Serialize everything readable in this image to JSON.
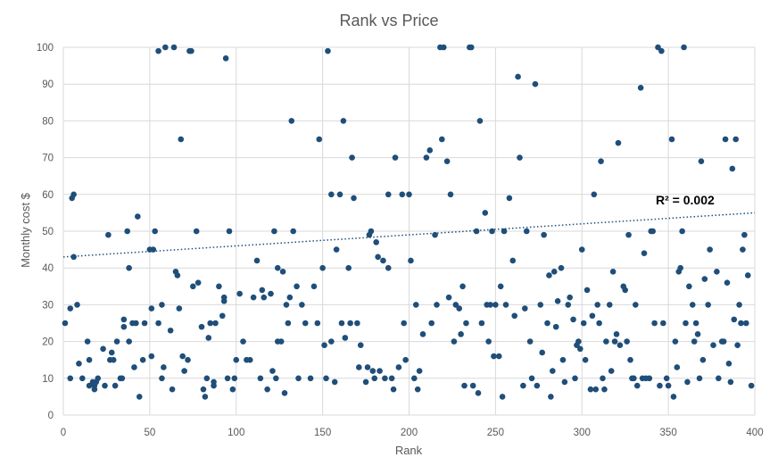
{
  "chart_data": {
    "type": "scatter",
    "title": "Rank vs Price",
    "xlabel": "Rank",
    "ylabel": "Monthly cost $",
    "xlim": [
      0,
      400
    ],
    "ylim": [
      0,
      100
    ],
    "x_ticks": [
      0,
      50,
      100,
      150,
      200,
      250,
      300,
      350,
      400
    ],
    "y_ticks": [
      0,
      10,
      20,
      30,
      40,
      50,
      60,
      70,
      80,
      90,
      100
    ],
    "grid": true,
    "legend": "none",
    "marker_color": "#1f4e79",
    "trendline": {
      "type": "linear",
      "style": "dotted",
      "color": "#1f4e79",
      "start": [
        0,
        43
      ],
      "end": [
        400,
        55
      ],
      "r_squared_label": "R² = 0.002"
    },
    "points": [
      [
        1,
        25
      ],
      [
        4,
        10
      ],
      [
        4,
        29
      ],
      [
        5,
        59
      ],
      [
        6,
        43
      ],
      [
        6,
        60
      ],
      [
        8,
        30
      ],
      [
        9,
        14
      ],
      [
        11,
        10
      ],
      [
        14,
        20
      ],
      [
        15,
        15
      ],
      [
        15,
        8
      ],
      [
        17,
        9
      ],
      [
        18,
        7
      ],
      [
        18,
        8
      ],
      [
        19,
        9
      ],
      [
        20,
        10
      ],
      [
        23,
        18
      ],
      [
        24,
        8
      ],
      [
        26,
        49
      ],
      [
        27,
        15
      ],
      [
        28,
        17
      ],
      [
        29,
        15
      ],
      [
        30,
        8
      ],
      [
        31,
        20
      ],
      [
        33,
        10
      ],
      [
        34,
        10
      ],
      [
        35,
        24
      ],
      [
        35,
        26
      ],
      [
        37,
        50
      ],
      [
        38,
        40
      ],
      [
        38,
        20
      ],
      [
        40,
        25
      ],
      [
        41,
        13
      ],
      [
        42,
        25
      ],
      [
        43,
        54
      ],
      [
        44,
        5
      ],
      [
        46,
        15
      ],
      [
        47,
        25
      ],
      [
        50,
        45
      ],
      [
        51,
        29
      ],
      [
        51,
        16
      ],
      [
        52,
        45
      ],
      [
        53,
        50
      ],
      [
        55,
        25
      ],
      [
        55,
        99
      ],
      [
        57,
        10
      ],
      [
        57,
        30
      ],
      [
        58,
        13
      ],
      [
        59,
        100
      ],
      [
        62,
        23
      ],
      [
        63,
        7
      ],
      [
        64,
        100
      ],
      [
        65,
        39
      ],
      [
        66,
        38
      ],
      [
        67,
        29
      ],
      [
        68,
        75
      ],
      [
        69,
        16
      ],
      [
        70,
        12
      ],
      [
        72,
        15
      ],
      [
        73,
        99
      ],
      [
        74,
        99
      ],
      [
        75,
        35
      ],
      [
        77,
        50
      ],
      [
        78,
        36
      ],
      [
        80,
        24
      ],
      [
        81,
        7
      ],
      [
        82,
        5
      ],
      [
        83,
        10
      ],
      [
        84,
        21
      ],
      [
        85,
        25
      ],
      [
        87,
        8
      ],
      [
        87,
        9
      ],
      [
        88,
        25
      ],
      [
        90,
        35
      ],
      [
        92,
        27
      ],
      [
        93,
        31
      ],
      [
        93,
        32
      ],
      [
        94,
        97
      ],
      [
        95,
        10
      ],
      [
        96,
        50
      ],
      [
        98,
        7
      ],
      [
        99,
        10
      ],
      [
        100,
        15
      ],
      [
        102,
        33
      ],
      [
        104,
        20
      ],
      [
        106,
        15
      ],
      [
        108,
        15
      ],
      [
        110,
        32
      ],
      [
        112,
        42
      ],
      [
        114,
        10
      ],
      [
        115,
        34
      ],
      [
        116,
        32
      ],
      [
        118,
        7
      ],
      [
        120,
        33
      ],
      [
        121,
        12
      ],
      [
        122,
        50
      ],
      [
        123,
        10
      ],
      [
        124,
        40
      ],
      [
        124,
        20
      ],
      [
        126,
        20
      ],
      [
        127,
        39
      ],
      [
        128,
        6
      ],
      [
        129,
        30
      ],
      [
        130,
        25
      ],
      [
        131,
        32
      ],
      [
        132,
        80
      ],
      [
        133,
        50
      ],
      [
        135,
        35
      ],
      [
        136,
        10
      ],
      [
        138,
        30
      ],
      [
        140,
        25
      ],
      [
        143,
        10
      ],
      [
        145,
        35
      ],
      [
        147,
        25
      ],
      [
        148,
        75
      ],
      [
        150,
        40
      ],
      [
        151,
        19
      ],
      [
        152,
        10
      ],
      [
        153,
        99
      ],
      [
        155,
        20
      ],
      [
        155,
        60
      ],
      [
        157,
        9
      ],
      [
        158,
        45
      ],
      [
        160,
        60
      ],
      [
        161,
        25
      ],
      [
        162,
        80
      ],
      [
        163,
        21
      ],
      [
        165,
        40
      ],
      [
        166,
        25
      ],
      [
        167,
        70
      ],
      [
        168,
        59
      ],
      [
        170,
        25
      ],
      [
        171,
        13
      ],
      [
        172,
        19
      ],
      [
        175,
        9
      ],
      [
        176,
        13
      ],
      [
        177,
        49
      ],
      [
        178,
        50
      ],
      [
        179,
        12
      ],
      [
        180,
        10
      ],
      [
        181,
        47
      ],
      [
        182,
        43
      ],
      [
        183,
        12
      ],
      [
        185,
        42
      ],
      [
        186,
        10
      ],
      [
        188,
        40
      ],
      [
        188,
        60
      ],
      [
        190,
        10
      ],
      [
        191,
        7
      ],
      [
        192,
        70
      ],
      [
        194,
        13
      ],
      [
        196,
        60
      ],
      [
        197,
        25
      ],
      [
        198,
        15
      ],
      [
        200,
        60
      ],
      [
        201,
        42
      ],
      [
        203,
        10
      ],
      [
        204,
        30
      ],
      [
        205,
        7
      ],
      [
        206,
        12
      ],
      [
        208,
        22
      ],
      [
        210,
        70
      ],
      [
        212,
        72
      ],
      [
        213,
        25
      ],
      [
        215,
        49
      ],
      [
        216,
        30
      ],
      [
        218,
        100
      ],
      [
        219,
        75
      ],
      [
        220,
        100
      ],
      [
        222,
        69
      ],
      [
        223,
        32
      ],
      [
        224,
        60
      ],
      [
        226,
        20
      ],
      [
        227,
        30
      ],
      [
        229,
        29
      ],
      [
        230,
        22
      ],
      [
        231,
        35
      ],
      [
        232,
        8
      ],
      [
        233,
        25
      ],
      [
        235,
        100
      ],
      [
        236,
        100
      ],
      [
        237,
        8
      ],
      [
        239,
        50
      ],
      [
        240,
        6
      ],
      [
        241,
        80
      ],
      [
        242,
        25
      ],
      [
        244,
        55
      ],
      [
        245,
        30
      ],
      [
        246,
        20
      ],
      [
        247,
        30
      ],
      [
        248,
        50
      ],
      [
        249,
        16
      ],
      [
        250,
        30
      ],
      [
        252,
        16
      ],
      [
        253,
        35
      ],
      [
        254,
        5
      ],
      [
        255,
        50
      ],
      [
        256,
        30
      ],
      [
        258,
        59
      ],
      [
        260,
        42
      ],
      [
        261,
        27
      ],
      [
        263,
        92
      ],
      [
        264,
        70
      ],
      [
        266,
        8
      ],
      [
        267,
        29
      ],
      [
        268,
        50
      ],
      [
        270,
        20
      ],
      [
        271,
        10
      ],
      [
        273,
        90
      ],
      [
        274,
        8
      ],
      [
        276,
        30
      ],
      [
        277,
        17
      ],
      [
        278,
        49
      ],
      [
        280,
        25
      ],
      [
        281,
        38
      ],
      [
        282,
        5
      ],
      [
        283,
        12
      ],
      [
        284,
        39
      ],
      [
        285,
        24
      ],
      [
        286,
        31
      ],
      [
        288,
        40
      ],
      [
        289,
        15
      ],
      [
        290,
        9
      ],
      [
        292,
        30
      ],
      [
        293,
        32
      ],
      [
        295,
        26
      ],
      [
        296,
        10
      ],
      [
        297,
        19
      ],
      [
        298,
        20
      ],
      [
        299,
        18
      ],
      [
        300,
        45
      ],
      [
        301,
        25
      ],
      [
        302,
        15
      ],
      [
        303,
        34
      ],
      [
        305,
        7
      ],
      [
        306,
        27
      ],
      [
        307,
        60
      ],
      [
        308,
        7
      ],
      [
        309,
        30
      ],
      [
        310,
        25
      ],
      [
        311,
        69
      ],
      [
        312,
        10
      ],
      [
        313,
        7
      ],
      [
        314,
        20
      ],
      [
        316,
        30
      ],
      [
        317,
        12
      ],
      [
        318,
        39
      ],
      [
        319,
        20
      ],
      [
        320,
        22
      ],
      [
        321,
        74
      ],
      [
        322,
        19
      ],
      [
        324,
        35
      ],
      [
        325,
        34
      ],
      [
        326,
        20
      ],
      [
        327,
        49
      ],
      [
        328,
        15
      ],
      [
        329,
        10
      ],
      [
        330,
        10
      ],
      [
        331,
        30
      ],
      [
        332,
        8
      ],
      [
        334,
        89
      ],
      [
        335,
        10
      ],
      [
        336,
        44
      ],
      [
        337,
        10
      ],
      [
        339,
        10
      ],
      [
        340,
        50
      ],
      [
        341,
        50
      ],
      [
        342,
        25
      ],
      [
        344,
        100
      ],
      [
        345,
        8
      ],
      [
        346,
        99
      ],
      [
        347,
        25
      ],
      [
        349,
        10
      ],
      [
        350,
        8
      ],
      [
        352,
        75
      ],
      [
        353,
        5
      ],
      [
        354,
        20
      ],
      [
        355,
        13
      ],
      [
        356,
        39
      ],
      [
        357,
        40
      ],
      [
        358,
        50
      ],
      [
        359,
        100
      ],
      [
        360,
        25
      ],
      [
        361,
        9
      ],
      [
        362,
        35
      ],
      [
        364,
        30
      ],
      [
        365,
        20
      ],
      [
        366,
        25
      ],
      [
        367,
        22
      ],
      [
        368,
        10
      ],
      [
        369,
        69
      ],
      [
        370,
        15
      ],
      [
        371,
        37
      ],
      [
        373,
        30
      ],
      [
        374,
        45
      ],
      [
        376,
        19
      ],
      [
        378,
        39
      ],
      [
        379,
        10
      ],
      [
        381,
        20
      ],
      [
        382,
        20
      ],
      [
        383,
        75
      ],
      [
        384,
        36
      ],
      [
        385,
        14
      ],
      [
        386,
        9
      ],
      [
        387,
        67
      ],
      [
        388,
        26
      ],
      [
        389,
        75
      ],
      [
        390,
        19
      ],
      [
        391,
        30
      ],
      [
        392,
        25
      ],
      [
        393,
        45
      ],
      [
        394,
        49
      ],
      [
        395,
        25
      ],
      [
        396,
        38
      ],
      [
        398,
        8
      ]
    ]
  }
}
